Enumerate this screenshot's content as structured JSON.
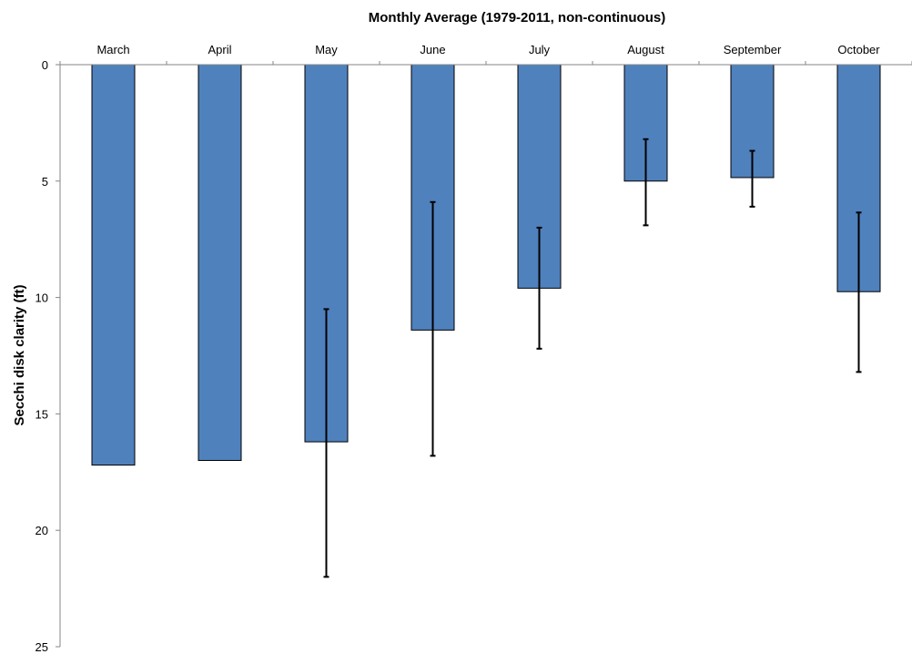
{
  "chart_data": {
    "type": "bar",
    "title": "Monthly Average (1979-2011, non-continuous)",
    "ylabel": "Secchi disk clarity (ft)",
    "xlabel": "",
    "categories": [
      "March",
      "April",
      "May",
      "June",
      "July",
      "August",
      "September",
      "October"
    ],
    "values": [
      17.2,
      17.0,
      16.2,
      11.4,
      9.6,
      5.0,
      4.85,
      9.75
    ],
    "error_bars": [
      null,
      null,
      [
        10.5,
        22.0
      ],
      [
        5.9,
        16.8
      ],
      [
        7.0,
        12.2
      ],
      [
        3.2,
        6.9
      ],
      [
        3.7,
        6.1
      ],
      [
        6.35,
        13.2
      ]
    ],
    "yticks": [
      "0",
      "5",
      "10",
      "15",
      "20",
      "25"
    ],
    "ylim": [
      0,
      25
    ],
    "y_axis_inverted": true,
    "category_axis_position": "top",
    "grid": false,
    "legend": "none",
    "bar_color": "#4f81bd",
    "bar_border_color": "#000000",
    "error_bar_color": "#000000"
  }
}
